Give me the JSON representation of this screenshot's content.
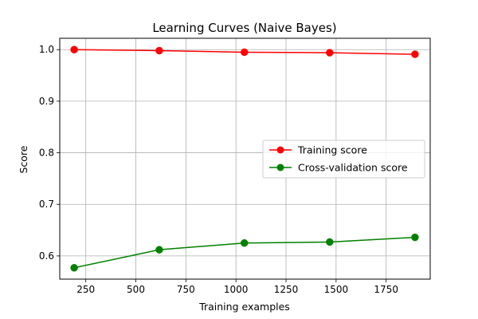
{
  "chart_data": {
    "type": "line",
    "title": "Learning Curves (Naive Bayes)",
    "xlabel": "Training examples",
    "ylabel": "Score",
    "xlim": [
      120,
      1970
    ],
    "ylim": [
      0.555,
      1.022
    ],
    "xticks": [
      250,
      500,
      750,
      1000,
      1250,
      1500,
      1750
    ],
    "yticks": [
      0.6,
      0.7,
      0.8,
      0.9,
      1.0
    ],
    "xtick_labels": [
      "250",
      "500",
      "750",
      "1000",
      "1250",
      "1500",
      "1750"
    ],
    "ytick_labels": [
      "0.6",
      "0.7",
      "0.8",
      "0.9",
      "1.0"
    ],
    "grid": true,
    "legend_position": "center-right",
    "x": [
      192,
      617,
      1042,
      1468,
      1894
    ],
    "series": [
      {
        "name": "Training score",
        "color": "#ff0000",
        "values": [
          1.0,
          0.998,
          0.995,
          0.994,
          0.991
        ]
      },
      {
        "name": "Cross-validation score",
        "color": "#008000",
        "values": [
          0.577,
          0.612,
          0.625,
          0.627,
          0.636
        ]
      }
    ]
  }
}
